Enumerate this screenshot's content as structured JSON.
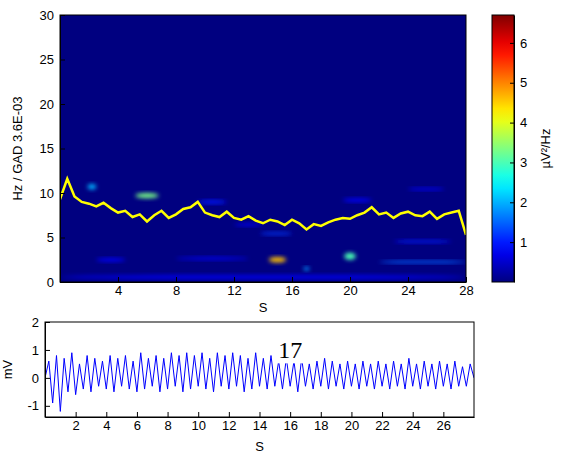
{
  "chart_data": [
    {
      "type": "heatmap",
      "xlabel": "S",
      "ylabel": "Hz / GAD 3.6E-03",
      "xlim": [
        0,
        28
      ],
      "xticks": [
        4,
        8,
        12,
        16,
        20,
        24,
        28
      ],
      "ylim": [
        0,
        30
      ],
      "yticks": [
        0,
        5,
        10,
        15,
        20,
        25,
        30
      ],
      "colorbar": {
        "label": "µV²/Hz",
        "range": [
          0,
          6.7
        ],
        "ticks": [
          1,
          2,
          3,
          4,
          5,
          6
        ]
      },
      "cells": [
        {
          "x": [
            1.9,
            2.5
          ],
          "y": [
            10.4,
            11.0
          ],
          "value": 2.0
        },
        {
          "x": [
            5.2,
            6.8
          ],
          "y": [
            9.4,
            10.0
          ],
          "value": 3.3
        },
        {
          "x": [
            14.4,
            15.6
          ],
          "y": [
            2.2,
            2.8
          ],
          "value": 4.6
        },
        {
          "x": [
            19.6,
            20.4
          ],
          "y": [
            2.5,
            3.3
          ],
          "value": 3.0
        },
        {
          "x": [
            16.8,
            17.2
          ],
          "y": [
            1.3,
            1.7
          ],
          "value": 1.8
        },
        {
          "x": [
            13.8,
            16.0
          ],
          "y": [
            5.3,
            5.6
          ],
          "value": 1.2
        },
        {
          "x": [
            22.0,
            28.0
          ],
          "y": [
            2.1,
            2.4
          ],
          "value": 1.5
        },
        {
          "x": [
            23.0,
            27.0
          ],
          "y": [
            4.4,
            4.7
          ],
          "value": 1.0
        },
        {
          "x": [
            8.0,
            13.0
          ],
          "y": [
            2.5,
            2.8
          ],
          "value": 0.8
        },
        {
          "x": [
            12.0,
            14.0
          ],
          "y": [
            6.3,
            6.6
          ],
          "value": 0.9
        },
        {
          "x": [
            0,
            28
          ],
          "y": [
            0.3,
            0.8
          ],
          "value": 0.7
        },
        {
          "x": [
            2.5,
            4.5
          ],
          "y": [
            2.3,
            2.7
          ],
          "value": 0.9
        },
        {
          "x": [
            9.5,
            11.5
          ],
          "y": [
            8.8,
            9.2
          ],
          "value": 1.0
        },
        {
          "x": [
            19.5,
            21.5
          ],
          "y": [
            9.0,
            9.4
          ],
          "value": 0.8
        },
        {
          "x": [
            24.0,
            26.5
          ],
          "y": [
            10.3,
            10.6
          ],
          "value": 0.8
        }
      ],
      "series": [
        {
          "type": "line",
          "color": "#ffff00",
          "x": [
            0,
            0.5,
            1,
            1.5,
            2,
            2.5,
            3,
            3.5,
            4,
            4.5,
            5,
            5.5,
            6,
            6.5,
            7,
            7.5,
            8,
            8.5,
            9,
            9.5,
            10,
            10.5,
            11,
            11.5,
            12,
            12.5,
            13,
            13.5,
            14,
            14.5,
            15,
            15.5,
            16,
            16.5,
            17,
            17.5,
            18,
            18.5,
            19,
            19.5,
            20,
            20.5,
            21,
            21.5,
            22,
            22.5,
            23,
            23.5,
            24,
            24.5,
            25,
            25.5,
            26,
            26.5,
            27,
            27.5,
            28
          ],
          "values": [
            9.3,
            11.6,
            9.6,
            9.0,
            8.8,
            8.5,
            8.9,
            8.3,
            7.8,
            8.0,
            7.3,
            7.6,
            6.8,
            7.5,
            8.0,
            7.2,
            7.6,
            8.2,
            8.4,
            9.0,
            7.8,
            7.5,
            7.3,
            7.9,
            7.2,
            7.0,
            7.4,
            6.9,
            6.6,
            7.0,
            6.8,
            6.4,
            7.0,
            6.6,
            5.9,
            6.5,
            6.3,
            6.7,
            7.0,
            7.2,
            7.1,
            7.5,
            7.8,
            8.4,
            7.6,
            7.8,
            7.2,
            7.7,
            7.9,
            7.5,
            7.4,
            7.9,
            7.1,
            7.6,
            7.8,
            8.0,
            5.3
          ]
        }
      ]
    },
    {
      "type": "line",
      "xlabel": "S",
      "ylabel": "mV",
      "xlim": [
        0,
        28
      ],
      "xticks": [
        2,
        4,
        6,
        8,
        10,
        12,
        14,
        16,
        18,
        20,
        22,
        24,
        26
      ],
      "ylim": [
        -1.4,
        2
      ],
      "yticks": [
        -1,
        0,
        1,
        2
      ],
      "annotations": [
        {
          "text": "17",
          "x": 16,
          "y": 1.0
        }
      ],
      "series": [
        {
          "color": "#0000ff",
          "x": [
            0,
            0.25,
            0.5,
            0.75,
            1,
            1.25,
            1.5,
            1.75,
            2,
            2.25,
            2.5,
            2.75,
            3,
            3.25,
            3.5,
            3.75,
            4,
            4.25,
            4.5,
            4.75,
            5,
            5.25,
            5.5,
            5.75,
            6,
            6.25,
            6.5,
            6.75,
            7,
            7.25,
            7.5,
            7.75,
            8,
            8.25,
            8.5,
            8.75,
            9,
            9.25,
            9.5,
            9.75,
            10,
            10.25,
            10.5,
            10.75,
            11,
            11.25,
            11.5,
            11.75,
            12,
            12.25,
            12.5,
            12.75,
            13,
            13.25,
            13.5,
            13.75,
            14,
            14.25,
            14.5,
            14.75,
            15,
            15.25,
            15.5,
            15.75,
            16,
            16.25,
            16.5,
            16.75,
            17,
            17.25,
            17.5,
            17.75,
            18,
            18.25,
            18.5,
            18.75,
            19,
            19.25,
            19.5,
            19.75,
            20,
            20.25,
            20.5,
            20.75,
            21,
            21.25,
            21.5,
            21.75,
            22,
            22.25,
            22.5,
            22.75,
            23,
            23.25,
            23.5,
            23.75,
            24,
            24.25,
            24.5,
            24.75,
            25,
            25.25,
            25.5,
            25.75,
            26,
            26.25,
            26.5,
            26.75,
            27,
            27.25,
            27.5,
            27.75,
            28
          ],
          "values": [
            0.0,
            0.6,
            -0.9,
            0.8,
            -1.2,
            0.7,
            -0.5,
            0.9,
            -0.6,
            0.5,
            -0.4,
            0.8,
            -0.5,
            0.7,
            -0.3,
            0.6,
            -0.4,
            0.8,
            -0.5,
            0.7,
            -0.3,
            0.8,
            -0.4,
            0.6,
            -0.5,
            0.9,
            -0.4,
            0.7,
            -0.3,
            0.8,
            -0.5,
            0.7,
            -0.4,
            0.9,
            -0.3,
            0.8,
            -0.5,
            0.9,
            -0.4,
            0.8,
            -0.3,
            0.9,
            -0.4,
            0.7,
            -0.5,
            0.9,
            -0.3,
            0.8,
            -0.4,
            0.9,
            -0.3,
            0.8,
            -0.5,
            0.7,
            -0.4,
            0.9,
            -0.3,
            0.7,
            -0.4,
            0.8,
            -0.3,
            0.6,
            -0.4,
            0.7,
            -0.3,
            0.6,
            -0.5,
            0.7,
            -0.3,
            0.5,
            -0.4,
            0.6,
            -0.3,
            0.7,
            -0.4,
            0.6,
            -0.3,
            0.5,
            -0.4,
            0.6,
            -0.3,
            0.5,
            -0.4,
            0.6,
            -0.3,
            0.5,
            -0.4,
            0.6,
            -0.3,
            0.5,
            -0.4,
            0.6,
            -0.3,
            0.5,
            -0.4,
            0.7,
            -0.3,
            0.5,
            -0.4,
            0.6,
            -0.3,
            0.5,
            -0.4,
            0.6,
            -0.3,
            0.5,
            -0.4,
            0.6,
            -0.3,
            0.4,
            -0.3,
            0.5,
            0.0
          ]
        }
      ]
    }
  ]
}
